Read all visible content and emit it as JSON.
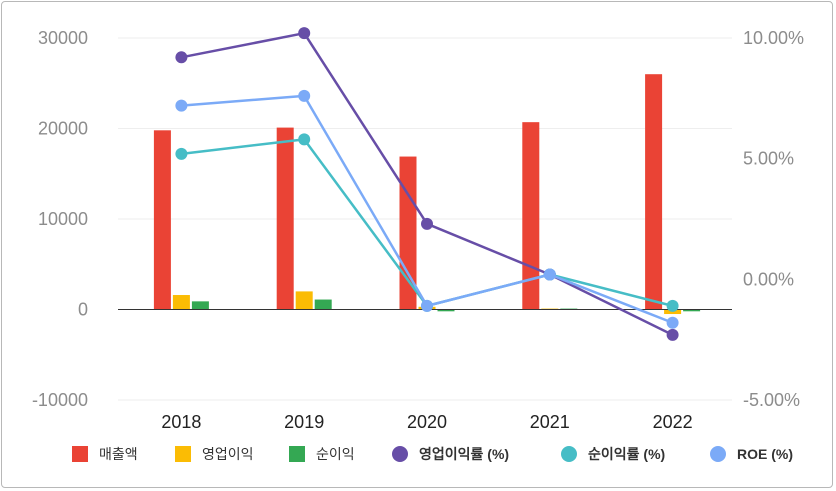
{
  "chart_data": {
    "type": "bar",
    "categories": [
      "2018",
      "2019",
      "2020",
      "2021",
      "2022"
    ],
    "y_left": {
      "ylim": [
        -10000,
        30000
      ],
      "ticks": [
        30000,
        20000,
        10000,
        0,
        -10000
      ],
      "tick_labels": [
        "30000",
        "20000",
        "10000",
        "0",
        "-10000"
      ]
    },
    "y_right": {
      "ylim": [
        -5,
        10
      ],
      "ticks": [
        10,
        5,
        0,
        -5
      ],
      "tick_labels": [
        "10.00%",
        "5.00%",
        "0.00%",
        "-5.00%"
      ]
    },
    "series": [
      {
        "name": "매출액",
        "kind": "bar",
        "axis": "left",
        "color": "#ea4335",
        "values": [
          19800,
          20100,
          16900,
          20700,
          26000
        ]
      },
      {
        "name": "영업이익",
        "kind": "bar",
        "axis": "left",
        "color": "#fbbc04",
        "values": [
          1600,
          2000,
          300,
          100,
          -500
        ]
      },
      {
        "name": "순이익",
        "kind": "bar",
        "axis": "left",
        "color": "#34a853",
        "values": [
          900,
          1100,
          -200,
          100,
          -200
        ]
      },
      {
        "name": "영업이익률 (%)",
        "kind": "line",
        "axis": "right",
        "color": "#674ea7",
        "values": [
          9.2,
          10.2,
          2.3,
          0.2,
          -2.3
        ]
      },
      {
        "name": "순이익률 (%)",
        "kind": "line",
        "axis": "right",
        "color": "#46bdc6",
        "values": [
          5.2,
          5.8,
          -1.1,
          0.2,
          -1.1
        ]
      },
      {
        "name": "ROE (%)",
        "kind": "line",
        "axis": "right",
        "color": "#7baaf7",
        "values": [
          7.2,
          7.6,
          -1.1,
          0.2,
          -1.8
        ]
      }
    ],
    "legend_position": "bottom",
    "grid": true
  }
}
